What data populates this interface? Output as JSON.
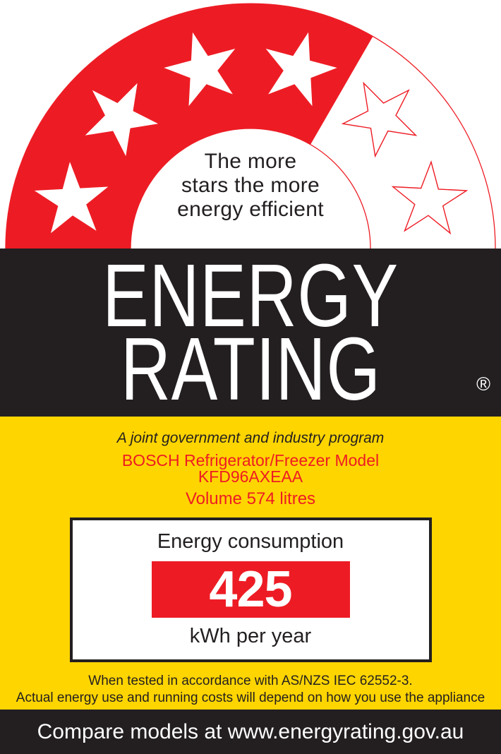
{
  "label": {
    "arc": {
      "tagline_lines": [
        "The more",
        "stars the more",
        "energy efficient"
      ],
      "star_rating": 4,
      "total_stars": 6
    },
    "brand": {
      "title_line1": "ENERGY",
      "title_line2": "RATING",
      "registered_mark": "®"
    },
    "program": {
      "text": "A joint government and industry program"
    },
    "product": {
      "line1": "BOSCH Refrigerator/Freezer Model",
      "model": "KFD96AXEAA",
      "volume": "Volume 574 litres"
    },
    "consumption": {
      "heading": "Energy consumption",
      "value": "425",
      "unit": "kWh per year"
    },
    "notes": {
      "line1": "When tested in accordance with AS/NZS IEC 62552-3.",
      "line2": "Actual energy use and running costs will depend on how you use the appliance"
    },
    "footer": {
      "text": "Compare models at www.energyrating.gov.au"
    }
  },
  "colors": {
    "red": "#ed1c24",
    "yellow": "#ffd500",
    "black": "#231f20",
    "white": "#ffffff"
  }
}
